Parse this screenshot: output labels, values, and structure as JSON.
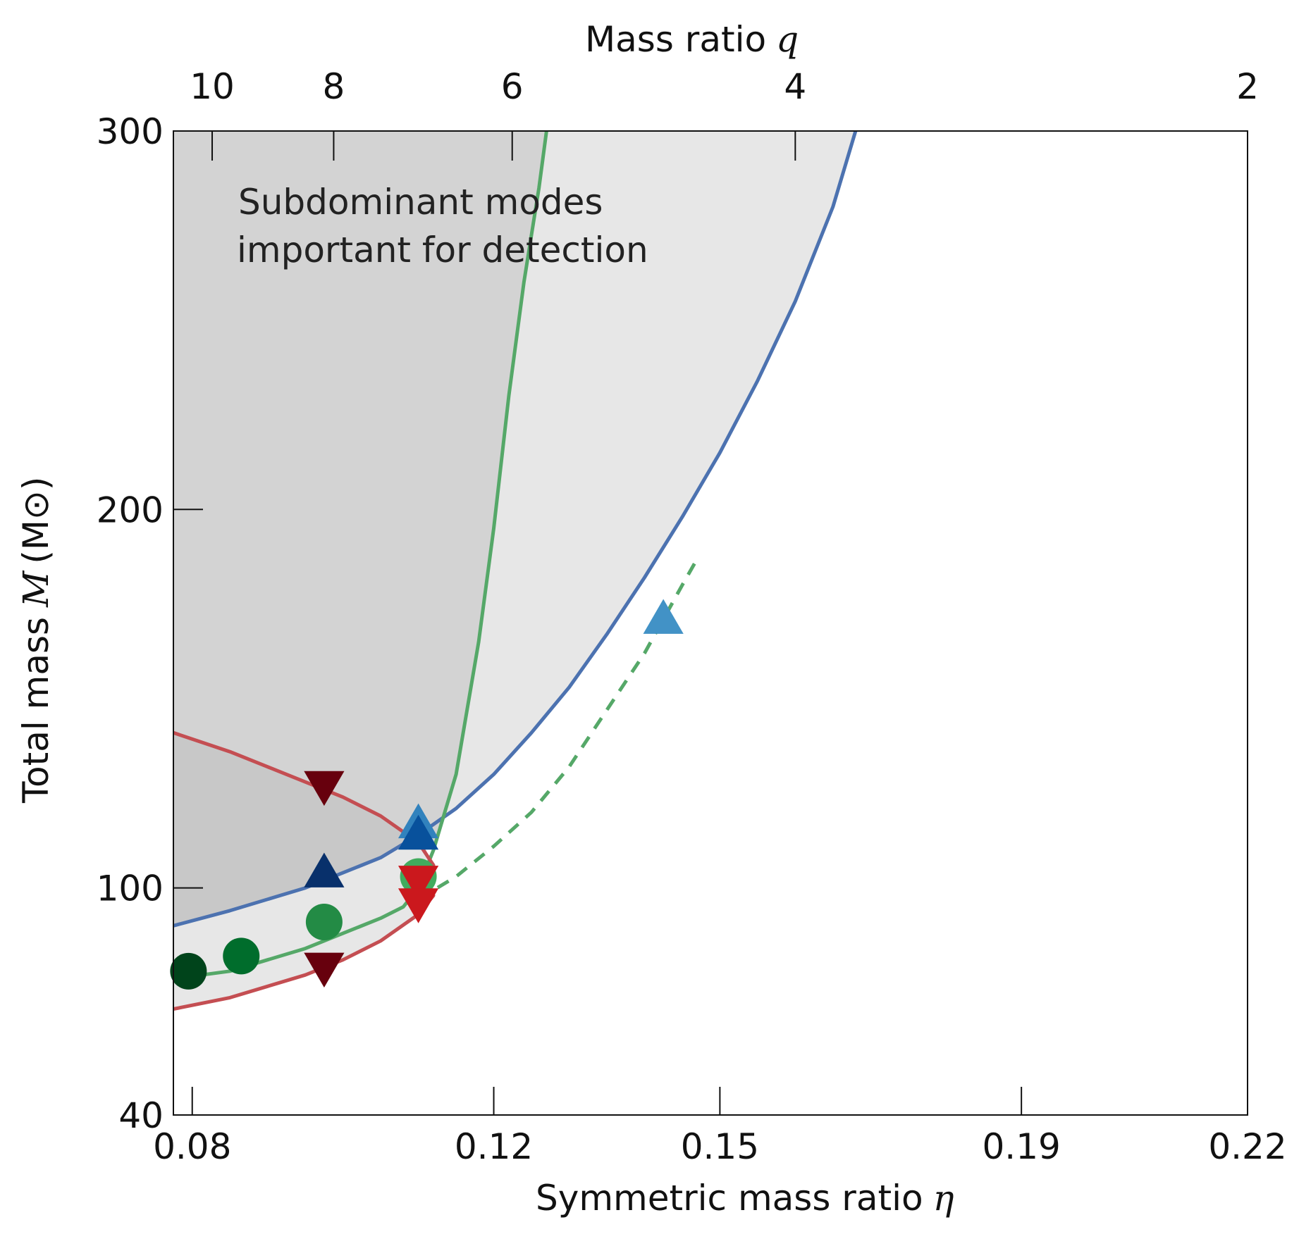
{
  "chart_data": {
    "type": "line",
    "title": "",
    "xlabel": "Symmetric mass ratio",
    "xlabel_symbol": "η",
    "ylabel": "Total mass",
    "ylabel_symbol": "M",
    "ylabel_unit": "(M⊙)",
    "top_xlabel": "Mass ratio",
    "top_xlabel_symbol": "q",
    "xlim": [
      0.0775,
      0.22
    ],
    "ylim": [
      40,
      300
    ],
    "x_ticks": [
      0.08,
      0.12,
      0.15,
      0.19,
      0.22
    ],
    "x_tick_labels": [
      "0.08",
      "0.12",
      "0.15",
      "0.19",
      "0.22"
    ],
    "y_ticks": [
      40,
      100,
      200,
      300
    ],
    "y_tick_labels": [
      "40",
      "100",
      "200",
      "300"
    ],
    "top_ticks": [
      10,
      8,
      6,
      4,
      2
    ],
    "top_tick_labels": [
      "10",
      "8",
      "6",
      "4",
      "2"
    ],
    "annotation": [
      "Subdominant modes",
      "important for detection"
    ],
    "grid": false,
    "regions": [
      {
        "name": "light-shaded-region",
        "color": "#e7e7e7",
        "description": "area above blue curve"
      },
      {
        "name": "dark-shaded-region",
        "color": "#d3d3d3",
        "description": "area left of green curve and inside red curve"
      }
    ],
    "series": [
      {
        "name": "blue-boundary",
        "color": "#4c72b0",
        "style": "solid",
        "x": [
          0.0775,
          0.085,
          0.095,
          0.1,
          0.105,
          0.11,
          0.115,
          0.12,
          0.125,
          0.13,
          0.135,
          0.14,
          0.145,
          0.15,
          0.155,
          0.16,
          0.165,
          0.168
        ],
        "y": [
          90,
          94,
          100,
          104,
          108,
          114,
          121,
          130,
          141,
          153,
          167,
          182,
          198,
          215,
          234,
          255,
          280,
          300
        ]
      },
      {
        "name": "green-boundary",
        "color": "#55a868",
        "style": "solid",
        "x": [
          0.0775,
          0.085,
          0.09,
          0.095,
          0.1,
          0.105,
          0.108,
          0.11,
          0.112,
          0.115,
          0.118,
          0.12,
          0.122,
          0.124,
          0.126,
          0.127
        ],
        "y": [
          76,
          78,
          81,
          84,
          88,
          92,
          95,
          100,
          110,
          130,
          165,
          195,
          230,
          260,
          285,
          300
        ]
      },
      {
        "name": "green-dashed",
        "color": "#55a868",
        "style": "dashed",
        "x": [
          0.11,
          0.115,
          0.12,
          0.125,
          0.13,
          0.135,
          0.14,
          0.145,
          0.147
        ],
        "y": [
          97,
          103,
          111,
          120,
          132,
          147,
          162,
          180,
          187
        ]
      },
      {
        "name": "red-upper",
        "color": "#c44e52",
        "style": "solid",
        "x": [
          0.0775,
          0.085,
          0.09,
          0.095,
          0.1,
          0.105,
          0.11,
          0.112
        ],
        "y": [
          141,
          136,
          132,
          128,
          124,
          119,
          112,
          106
        ]
      },
      {
        "name": "red-lower",
        "color": "#c44e52",
        "style": "solid",
        "x": [
          0.0775,
          0.085,
          0.09,
          0.095,
          0.1,
          0.105,
          0.11,
          0.112
        ],
        "y": [
          68,
          71,
          74,
          77,
          81,
          86,
          93,
          98
        ]
      }
    ],
    "markers": [
      {
        "shape": "circle",
        "color": "#00441b",
        "x": 0.0795,
        "y": 78
      },
      {
        "shape": "circle",
        "color": "#006d2c",
        "x": 0.0865,
        "y": 82
      },
      {
        "shape": "circle",
        "color": "#238b45",
        "x": 0.0975,
        "y": 91
      },
      {
        "shape": "circle",
        "color": "#41ab5d",
        "x": 0.11,
        "y": 103
      },
      {
        "shape": "triangle-up",
        "color": "#08306b",
        "x": 0.0975,
        "y": 104
      },
      {
        "shape": "triangle-up",
        "color": "#3182bd",
        "x": 0.11,
        "y": 117
      },
      {
        "shape": "triangle-up",
        "color": "#08519c",
        "x": 0.11,
        "y": 114
      },
      {
        "shape": "triangle-up",
        "color": "#4292c6",
        "x": 0.1425,
        "y": 171
      },
      {
        "shape": "triangle-down",
        "color": "#67000d",
        "x": 0.0975,
        "y": 127
      },
      {
        "shape": "triangle-down",
        "color": "#67000d",
        "x": 0.0975,
        "y": 79
      },
      {
        "shape": "triangle-down",
        "color": "#cb181d",
        "x": 0.11,
        "y": 102
      },
      {
        "shape": "triangle-down",
        "color": "#cb181d",
        "x": 0.11,
        "y": 96
      }
    ]
  }
}
